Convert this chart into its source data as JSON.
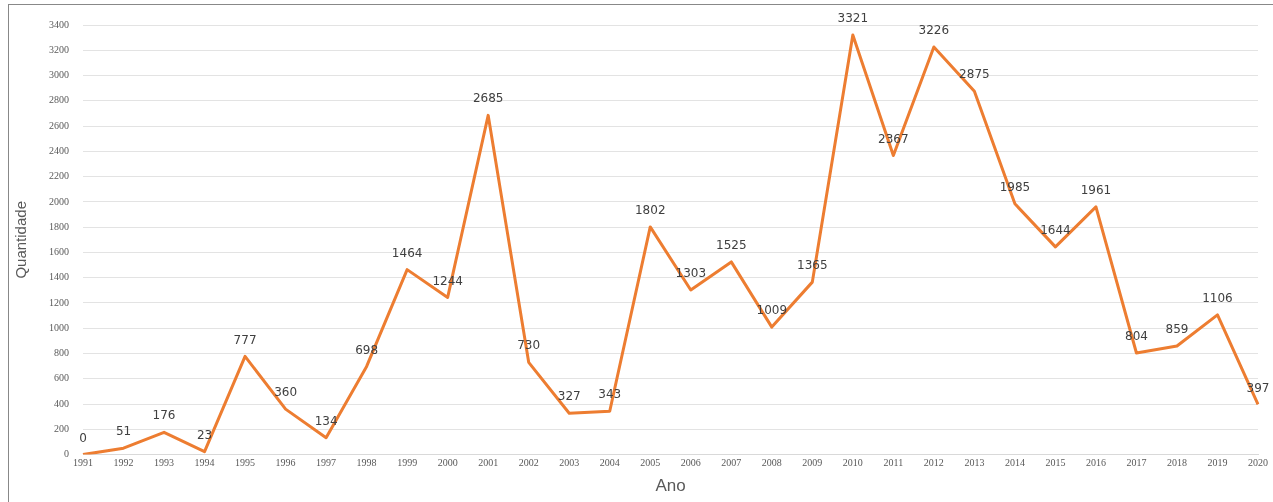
{
  "chart_data": {
    "type": "line",
    "xlabel": "Ano",
    "ylabel": "Quantidade",
    "categories": [
      "1991",
      "1992",
      "1993",
      "1994",
      "1995",
      "1996",
      "1997",
      "1998",
      "1999",
      "2000",
      "2001",
      "2002",
      "2003",
      "2004",
      "2005",
      "2006",
      "2007",
      "2008",
      "2009",
      "2010",
      "2011",
      "2012",
      "2013",
      "2014",
      "2015",
      "2016",
      "2017",
      "2018",
      "2019",
      "2020"
    ],
    "series": [
      {
        "color": "#ed7d31",
        "values": [
          0,
          51,
          176,
          23,
          777,
          360,
          134,
          698,
          1464,
          1244,
          2685,
          730,
          327,
          343,
          1802,
          1303,
          1525,
          1009,
          1365,
          3321,
          2367,
          3226,
          2875,
          1985,
          1644,
          1961,
          804,
          859,
          1106,
          397
        ]
      }
    ],
    "ylim": [
      0,
      3400
    ],
    "yticks": [
      0,
      200,
      400,
      600,
      800,
      1000,
      1200,
      1400,
      1600,
      1800,
      2000,
      2200,
      2400,
      2600,
      2800,
      3000,
      3200,
      3400
    ],
    "grid": "y",
    "legend": false,
    "marker": "none",
    "line_style": "solid",
    "data_labels": true
  }
}
